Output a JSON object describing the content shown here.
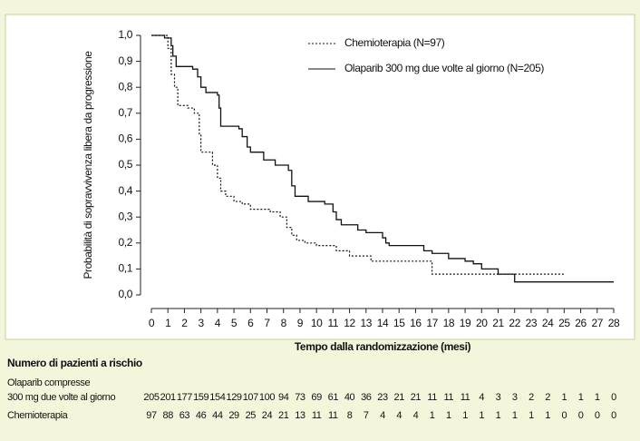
{
  "chart_data": {
    "type": "line",
    "step": true,
    "y_label": "Probabilità di sopravvivenza libera da progressione",
    "x_label": "Tempo dalla randomizzazione (mesi)",
    "xlim": [
      0,
      28
    ],
    "ylim": [
      0,
      1
    ],
    "xticks": [
      0,
      1,
      2,
      3,
      4,
      5,
      6,
      7,
      8,
      9,
      10,
      11,
      12,
      13,
      14,
      15,
      16,
      17,
      18,
      19,
      20,
      21,
      22,
      23,
      24,
      25,
      26,
      27,
      28
    ],
    "yticks": [
      {
        "value": 0,
        "label": "0,0"
      },
      {
        "value": 0.1,
        "label": "0,1"
      },
      {
        "value": 0.2,
        "label": "0,2"
      },
      {
        "value": 0.3,
        "label": "0,3"
      },
      {
        "value": 0.4,
        "label": "0,4"
      },
      {
        "value": 0.5,
        "label": "0,5"
      },
      {
        "value": 0.6,
        "label": "0,6"
      },
      {
        "value": 0.7,
        "label": "0,7"
      },
      {
        "value": 0.8,
        "label": "0,8"
      },
      {
        "value": 0.9,
        "label": "0,9"
      },
      {
        "value": 1,
        "label": "1,0"
      }
    ],
    "series": [
      {
        "name": "Chemioterapia (N=97)",
        "color": "#111111",
        "dash": true,
        "x": [
          0,
          1.0,
          1.2,
          1.4,
          1.6,
          2.2,
          2.6,
          2.9,
          3.0,
          3.7,
          4.0,
          4.2,
          4.5,
          5.0,
          5.5,
          6.0,
          7.2,
          7.8,
          8.2,
          8.5,
          8.8,
          9.3,
          10.0,
          11.2,
          12.0,
          13.3,
          17.0,
          25.0
        ],
        "values": [
          1.0,
          0.95,
          0.85,
          0.8,
          0.73,
          0.72,
          0.7,
          0.62,
          0.55,
          0.5,
          0.45,
          0.4,
          0.38,
          0.36,
          0.35,
          0.33,
          0.32,
          0.3,
          0.26,
          0.23,
          0.21,
          0.2,
          0.19,
          0.17,
          0.15,
          0.13,
          0.08,
          0.08
        ]
      },
      {
        "name": "Olaparib 300 mg due volte al giorno (N=205)",
        "color": "#111111",
        "dash": false,
        "x": [
          0,
          0.8,
          1.2,
          1.3,
          1.5,
          2.5,
          2.8,
          3.0,
          3.3,
          4.0,
          4.1,
          4.2,
          5.3,
          5.5,
          5.8,
          6.0,
          6.8,
          7.5,
          8.3,
          8.5,
          8.7,
          9.5,
          10.5,
          11.0,
          11.2,
          11.5,
          12.5,
          13.0,
          14.0,
          14.2,
          14.4,
          16.5,
          17.0,
          18.0,
          19.0,
          19.5,
          20.0,
          21.0,
          22.0,
          28.0
        ],
        "values": [
          1.0,
          0.99,
          0.96,
          0.92,
          0.88,
          0.87,
          0.84,
          0.8,
          0.78,
          0.77,
          0.72,
          0.65,
          0.64,
          0.61,
          0.57,
          0.55,
          0.52,
          0.5,
          0.48,
          0.42,
          0.38,
          0.36,
          0.35,
          0.32,
          0.29,
          0.27,
          0.25,
          0.24,
          0.22,
          0.2,
          0.19,
          0.17,
          0.16,
          0.14,
          0.13,
          0.12,
          0.1,
          0.08,
          0.05,
          0.05
        ]
      }
    ]
  },
  "risk_table": {
    "title": "Numero di pazienti a rischio",
    "rows": [
      {
        "label": [
          "Olaparib compresse",
          "300 mg due volte al giorno"
        ],
        "values": [
          205,
          201,
          177,
          159,
          154,
          129,
          107,
          100,
          94,
          73,
          69,
          61,
          40,
          36,
          23,
          21,
          21,
          11,
          11,
          11,
          4,
          3,
          3,
          2,
          2,
          1,
          1,
          1,
          0
        ]
      },
      {
        "label": [
          "Chemioterapia"
        ],
        "values": [
          97,
          88,
          63,
          46,
          44,
          29,
          25,
          24,
          21,
          13,
          11,
          11,
          8,
          7,
          4,
          4,
          4,
          1,
          1,
          1,
          1,
          1,
          1,
          1,
          1,
          0,
          0,
          0,
          0
        ]
      }
    ]
  }
}
